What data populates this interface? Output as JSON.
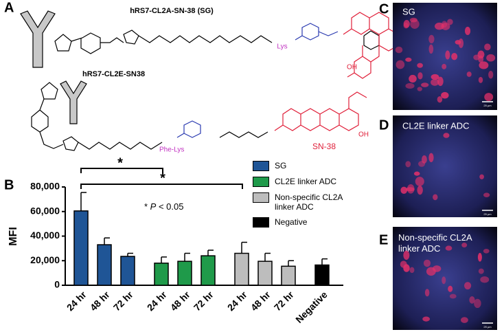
{
  "panel_letters": [
    "A",
    "B",
    "C",
    "D",
    "E"
  ],
  "structures": [
    {
      "title": "hRS7-CL2A-SN-38 (SG)",
      "linker": "Lys",
      "hydroxyl": "OH"
    },
    {
      "title": "hRS7-CL2E-SN38",
      "linker": "Phe-Lys",
      "hydroxyl": "OH",
      "payload": "SN-38"
    }
  ],
  "images": [
    {
      "label": "SG",
      "scale": "25 µm"
    },
    {
      "label": "CL2E linker ADC",
      "scale": "25 µm"
    },
    {
      "label": "Non-specific CL2A linker ADC",
      "scale": "25 µm"
    }
  ],
  "chart_data": {
    "type": "bar",
    "ylabel": "MFI",
    "ylim": [
      0,
      80000
    ],
    "yticks": [
      0,
      {
        "value": 20000,
        "label": "20,000"
      },
      {
        "value": 40000,
        "label": "40,000"
      },
      {
        "value": 60000,
        "label": "60,000"
      },
      {
        "value": 80000,
        "label": "80,000"
      }
    ],
    "annotation": [
      "* ",
      "P",
      " < 0.05"
    ],
    "significance_marks": [
      "*",
      "*"
    ],
    "series": [
      {
        "name": "SG",
        "color": "#1f5596",
        "categories": [
          "24 hr",
          "48 hr",
          "72 hr"
        ],
        "values": [
          60500,
          33000,
          23500
        ],
        "errors": [
          15000,
          5500,
          2500
        ]
      },
      {
        "name": "CL2E linker ADC",
        "color": "#1f9a4a",
        "categories": [
          "24 hr",
          "48 hr",
          "72 hr"
        ],
        "values": [
          18000,
          19500,
          24000
        ],
        "errors": [
          5000,
          6500,
          4500
        ]
      },
      {
        "name": "Non-specific CL2A linker ADC",
        "color": "#bdbdbd",
        "categories": [
          "24 hr",
          "48 hr",
          "72 hr"
        ],
        "values": [
          26000,
          19500,
          15500
        ],
        "errors": [
          9000,
          6500,
          4500
        ]
      },
      {
        "name": "Negative",
        "color": "#000000",
        "categories": [
          "Negative"
        ],
        "values": [
          16500
        ],
        "errors": [
          5000
        ]
      }
    ]
  }
}
